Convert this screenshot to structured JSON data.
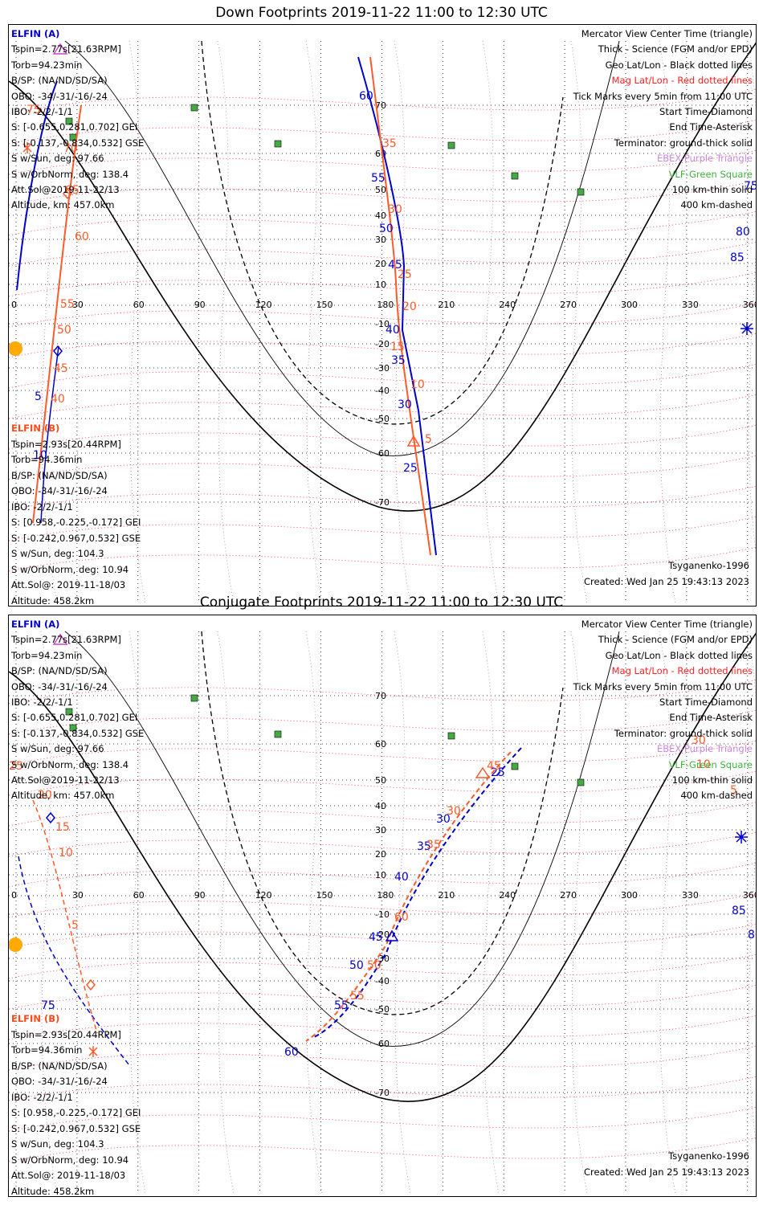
{
  "panels": [
    {
      "title": "Down Footprints 2019-11-22 11:00 to 12:30 UTC",
      "elfin_a": {
        "name": "ELFIN (A)",
        "lines": [
          "Tspin=2.77s[21.63RPM]",
          "Torb=94.23min",
          "B/SP: (NA/ND/SD/SA)",
          "OBO: -34/-31/-16/-24",
          "IBO: -2/2/-1/1",
          "S: [-0.655,0.281,0.702] GEI",
          "S: [-0.137,-0.834,0.532] GSE",
          "S w/Sun, deg: 97.66",
          "S w/OrbNorm, deg: 138.4",
          "Att.Sol@2019-11-22/13",
          "Altitude, km: 457.0km"
        ]
      },
      "elfin_b": {
        "name": "ELFIN (B)",
        "lines": [
          "Tspin=2.93s[20.44RPM]",
          "Torb=94.36min",
          "B/SP: (NA/ND/SD/SA)",
          "OBO: -34/-31/-16/-24",
          "IBO: -2/2/-1/1",
          "S: [0.958,-0.225,-0.172] GEI",
          "S: [-0.242,0.967,0.532] GSE",
          "S w/Sun, deg: 104.3",
          "S w/OrbNorm, deg: 10.94",
          "Att.Sol@: 2019-11-18/03",
          "Altitude: 458.2km"
        ]
      },
      "footer_model": "Tsyganenko-1996",
      "footer_created": "Created: Wed Jan 25 19:43:13 2023",
      "a_labels": [
        "60",
        "55",
        "50",
        "45",
        "40",
        "35",
        "30",
        "25",
        "5",
        "10"
      ],
      "b_labels": [
        "75",
        "70",
        "65",
        "60",
        "55",
        "50",
        "45",
        "40",
        "35",
        "30",
        "25",
        "20",
        "15",
        "10",
        "5"
      ]
    },
    {
      "title": "Conjugate Footprints 2019-11-22 11:00 to 12:30 UTC",
      "elfin_a": {
        "name": "ELFIN (A)",
        "lines": [
          "Tspin=2.77s[21.63RPM]",
          "Torb=94.23min",
          "B/SP: (NA/ND/SD/SA)",
          "OBO: -34/-31/-16/-24",
          "IBO: -2/2/-1/1",
          "S: [-0.655,0.281,0.702] GEI",
          "S: [-0.137,-0.834,0.532] GSE",
          "S w/Sun, deg: 97.66",
          "S w/OrbNorm, deg: 138.4",
          "Att.Sol@2019-11-22/13",
          "Altitude, km: 457.0km"
        ]
      },
      "elfin_b": {
        "name": "ELFIN (B)",
        "lines": [
          "Tspin=2.93s[20.44RPM]",
          "Torb=94.36min",
          "B/SP: (NA/ND/SD/SA)",
          "OBO: -34/-31/-16/-24",
          "IBO: -2/2/-1/1",
          "S: [0.958,-0.225,-0.172] GEI",
          "S: [-0.242,0.967,0.532] GSE",
          "S w/Sun, deg: 104.3",
          "S w/OrbNorm, deg: 10.94",
          "Att.Sol@: 2019-11-18/03",
          "Altitude: 458.2km"
        ]
      },
      "footer_model": "Tsyganenko-1996",
      "footer_created": "Created: Wed Jan 25 19:43:13 2023",
      "a_labels": [
        "25",
        "40",
        "35",
        "30",
        "45",
        "50",
        "55",
        "60",
        "75",
        "80",
        "85"
      ],
      "b_labels": [
        "45",
        "50",
        "55",
        "60",
        "35",
        "30",
        "25",
        "20",
        "15",
        "10",
        "5",
        "30",
        "10",
        "5"
      ]
    }
  ],
  "legend": {
    "mercator": "Mercator View Center Time (triangle)",
    "thick": "Thick - Science (FGM and/or EPD)",
    "geo": "Geo Lat/Lon - Black dotted lines",
    "mag": "Mag Lat/Lon - Red dotted lines",
    "ticks": "Tick Marks every 5min from 11:00 UTC",
    "start": "Start Time-Diamond",
    "end": "End Time-Asterisk",
    "terminator": "Terminator: ground-thick solid",
    "ebex": "EBEX-Purple Triangle",
    "vlf": "VLF-Green Square",
    "km100": "100 km-thin solid",
    "km400": "400 km-dashed"
  },
  "map": {
    "lon_ticks": [
      "0",
      "30",
      "60",
      "90",
      "120",
      "150",
      "180",
      "210",
      "240",
      "270",
      "300",
      "330",
      "360"
    ],
    "lat_ticks": [
      "70",
      "60",
      "50",
      "40",
      "30",
      "20",
      "10",
      "-10",
      "-20",
      "-30",
      "-40",
      "-50",
      "-60",
      "-70"
    ],
    "colors": {
      "elfin_a": "#0000cc",
      "elfin_b": "#ff5a2a",
      "geo_grid": "#000000",
      "mag_grid": "#ff3030",
      "terminator": "#000000",
      "vlf": "#44aa44",
      "sun": "#ffaa00"
    }
  }
}
